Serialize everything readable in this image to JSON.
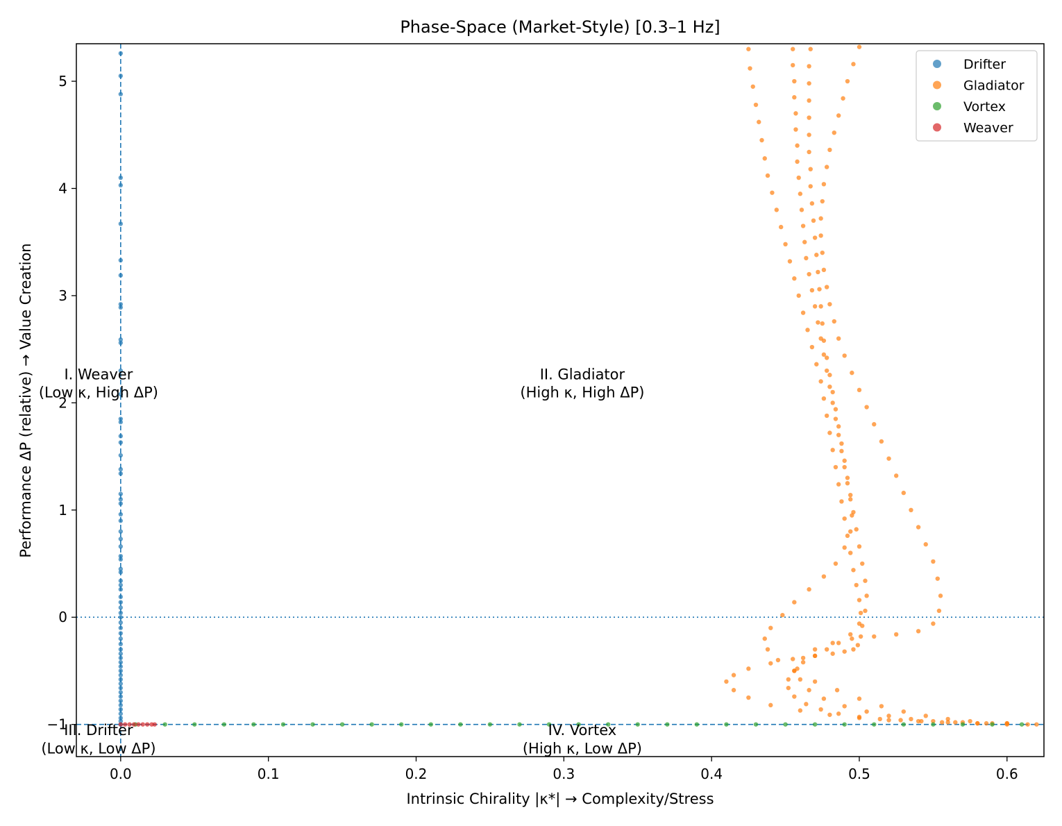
{
  "chart_data": {
    "type": "scatter",
    "title": "Phase-Space (Market-Style)  [0.3–1 Hz]",
    "xlabel": "Intrinsic Chirality |κ*|  → Complexity/Stress",
    "ylabel": "Performance ΔP (relative) → Value Creation",
    "xlim": [
      -0.03,
      0.625
    ],
    "ylim": [
      -1.3,
      5.35
    ],
    "x_ticks": [
      0.0,
      0.1,
      0.2,
      0.3,
      0.4,
      0.5,
      0.6
    ],
    "x_tick_labels": [
      "0.0",
      "0.1",
      "0.2",
      "0.3",
      "0.4",
      "0.5",
      "0.6"
    ],
    "y_ticks": [
      -1,
      0,
      1,
      2,
      3,
      4,
      5
    ],
    "y_tick_labels": [
      "−1",
      "0",
      "1",
      "2",
      "3",
      "4",
      "5"
    ],
    "grid": false,
    "legend_position": "top-right",
    "reference_lines": [
      {
        "orientation": "horizontal",
        "value": 0,
        "style": "dotted",
        "color": "#1f77b4"
      },
      {
        "orientation": "horizontal",
        "value": -1,
        "style": "dashed",
        "color": "#1f77b4"
      },
      {
        "orientation": "vertical",
        "value": 0,
        "style": "dashed",
        "color": "#1f77b4"
      }
    ],
    "quadrant_labels": [
      {
        "id": "weaver",
        "line1": "I. Weaver",
        "line2": "(Low κ, High ΔP)",
        "x": -0.015,
        "y": 2.2
      },
      {
        "id": "gladiator",
        "line1": "II. Gladiator",
        "line2": "(High κ, High ΔP)",
        "x": 0.3125,
        "y": 2.2
      },
      {
        "id": "drifter",
        "line1": "III. Drifter",
        "line2": "(Low κ, Low ΔP)",
        "x": -0.015,
        "y": -1.12
      },
      {
        "id": "vortex",
        "line1": "IV. Vortex",
        "line2": "(High κ, Low ΔP)",
        "x": 0.3125,
        "y": -1.12
      }
    ],
    "series": [
      {
        "name": "Drifter",
        "color": "#1f77b4",
        "x": [
          0,
          0,
          0,
          0,
          0,
          0,
          0,
          0,
          0,
          0,
          0,
          0,
          0,
          0,
          0,
          0,
          0,
          0,
          0,
          0,
          0,
          0,
          0,
          0,
          0,
          0,
          0,
          0,
          0,
          0,
          0,
          0,
          0,
          0,
          0,
          0,
          0,
          0,
          0,
          0,
          0,
          0,
          0,
          0,
          0,
          0,
          0,
          0,
          0,
          0,
          0,
          0,
          0,
          0,
          0,
          0,
          0,
          0,
          0,
          0,
          0,
          0,
          0,
          0,
          0
        ],
        "y": [
          5.26,
          5.05,
          4.88,
          4.1,
          4.03,
          3.67,
          3.33,
          3.19,
          2.92,
          2.89,
          2.59,
          2.56,
          2.3,
          2.08,
          1.85,
          1.82,
          1.69,
          1.63,
          1.51,
          1.38,
          1.34,
          1.15,
          1.1,
          1.06,
          0.96,
          0.9,
          0.8,
          0.73,
          0.66,
          0.57,
          0.54,
          0.45,
          0.42,
          0.34,
          0.3,
          0.26,
          0.19,
          0.14,
          0.09,
          0.04,
          0.0,
          -0.05,
          -0.1,
          -0.15,
          -0.2,
          -0.25,
          -0.3,
          -0.34,
          -0.38,
          -0.42,
          -0.46,
          -0.5,
          -0.54,
          -0.58,
          -0.62,
          -0.66,
          -0.7,
          -0.74,
          -0.78,
          -0.82,
          -0.86,
          -0.9,
          -0.94,
          -0.97,
          -1.0
        ]
      },
      {
        "name": "Gladiator",
        "color": "#ff7f0e",
        "x": [
          0.425,
          0.426,
          0.428,
          0.43,
          0.432,
          0.434,
          0.436,
          0.438,
          0.441,
          0.444,
          0.447,
          0.45,
          0.453,
          0.456,
          0.459,
          0.462,
          0.465,
          0.468,
          0.471,
          0.474,
          0.476,
          0.478,
          0.48,
          0.482,
          0.484,
          0.486,
          0.488,
          0.49,
          0.492,
          0.494,
          0.496,
          0.498,
          0.5,
          0.501,
          0.502,
          0.501,
          0.499,
          0.496,
          0.49,
          0.482,
          0.47,
          0.455,
          0.44,
          0.425,
          0.415,
          0.41,
          0.415,
          0.425,
          0.44,
          0.46,
          0.48,
          0.5,
          0.52,
          0.54,
          0.56,
          0.58,
          0.6,
          0.455,
          0.455,
          0.456,
          0.456,
          0.457,
          0.457,
          0.458,
          0.458,
          0.459,
          0.46,
          0.461,
          0.462,
          0.463,
          0.464,
          0.466,
          0.468,
          0.47,
          0.472,
          0.474,
          0.476,
          0.478,
          0.48,
          0.482,
          0.484,
          0.486,
          0.488,
          0.49,
          0.492,
          0.494,
          0.495,
          0.494,
          0.49,
          0.484,
          0.476,
          0.466,
          0.456,
          0.448,
          0.44,
          0.436,
          0.438,
          0.445,
          0.456,
          0.47,
          0.485,
          0.5,
          0.515,
          0.53,
          0.545,
          0.56,
          0.575,
          0.59,
          0.467,
          0.466,
          0.466,
          0.466,
          0.466,
          0.466,
          0.466,
          0.467,
          0.467,
          0.468,
          0.469,
          0.47,
          0.471,
          0.472,
          0.473,
          0.474,
          0.475,
          0.476,
          0.478,
          0.48,
          0.482,
          0.484,
          0.486,
          0.488,
          0.49,
          0.492,
          0.494,
          0.496,
          0.498,
          0.5,
          0.502,
          0.504,
          0.505,
          0.504,
          0.5,
          0.494,
          0.486,
          0.478,
          0.47,
          0.462,
          0.456,
          0.452,
          0.452,
          0.456,
          0.464,
          0.474,
          0.486,
          0.5,
          0.514,
          0.528,
          0.542,
          0.556,
          0.57,
          0.586,
          0.6,
          0.614,
          0.5,
          0.496,
          0.492,
          0.489,
          0.486,
          0.483,
          0.48,
          0.478,
          0.476,
          0.475,
          0.474,
          0.474,
          0.475,
          0.476,
          0.478,
          0.48,
          0.483,
          0.486,
          0.49,
          0.495,
          0.5,
          0.505,
          0.51,
          0.515,
          0.52,
          0.525,
          0.53,
          0.535,
          0.54,
          0.545,
          0.55,
          0.553,
          0.555,
          0.554,
          0.55,
          0.54,
          0.525,
          0.51,
          0.495,
          0.482,
          0.47,
          0.462,
          0.458,
          0.46,
          0.466,
          0.476,
          0.49,
          0.505,
          0.52,
          0.535,
          0.55,
          0.565,
          0.58,
          0.6,
          0.62
        ],
        "y": [
          5.3,
          5.12,
          4.95,
          4.78,
          4.62,
          4.45,
          4.28,
          4.12,
          3.96,
          3.8,
          3.64,
          3.48,
          3.32,
          3.16,
          3.0,
          2.84,
          2.68,
          2.52,
          2.36,
          2.2,
          2.04,
          1.88,
          1.72,
          1.56,
          1.4,
          1.24,
          1.08,
          0.92,
          0.76,
          0.6,
          0.44,
          0.3,
          0.16,
          0.04,
          -0.08,
          -0.18,
          -0.26,
          -0.3,
          -0.32,
          -0.34,
          -0.36,
          -0.39,
          -0.43,
          -0.48,
          -0.54,
          -0.6,
          -0.68,
          -0.75,
          -0.82,
          -0.87,
          -0.91,
          -0.94,
          -0.96,
          -0.97,
          -0.98,
          -0.99,
          -1.0,
          5.3,
          5.15,
          5.0,
          4.85,
          4.7,
          4.55,
          4.4,
          4.25,
          4.1,
          3.95,
          3.8,
          3.65,
          3.5,
          3.35,
          3.2,
          3.05,
          2.9,
          2.75,
          2.6,
          2.45,
          2.3,
          2.15,
          2.0,
          1.85,
          1.7,
          1.55,
          1.4,
          1.25,
          1.1,
          0.95,
          0.8,
          0.65,
          0.5,
          0.38,
          0.26,
          0.14,
          0.02,
          -0.1,
          -0.2,
          -0.3,
          -0.4,
          -0.5,
          -0.6,
          -0.68,
          -0.76,
          -0.83,
          -0.88,
          -0.92,
          -0.95,
          -0.97,
          -0.99,
          5.3,
          5.14,
          4.98,
          4.82,
          4.66,
          4.5,
          4.34,
          4.18,
          4.02,
          3.86,
          3.7,
          3.54,
          3.38,
          3.22,
          3.06,
          2.9,
          2.74,
          2.58,
          2.42,
          2.26,
          2.1,
          1.94,
          1.78,
          1.62,
          1.46,
          1.3,
          1.14,
          0.98,
          0.82,
          0.66,
          0.5,
          0.34,
          0.2,
          0.06,
          -0.06,
          -0.16,
          -0.24,
          -0.3,
          -0.36,
          -0.42,
          -0.5,
          -0.58,
          -0.66,
          -0.74,
          -0.81,
          -0.86,
          -0.9,
          -0.93,
          -0.95,
          -0.96,
          -0.97,
          -0.98,
          -0.98,
          -0.99,
          -0.99,
          -1.0,
          5.32,
          5.16,
          5.0,
          4.84,
          4.68,
          4.52,
          4.36,
          4.2,
          4.04,
          3.88,
          3.72,
          3.56,
          3.4,
          3.24,
          3.08,
          2.92,
          2.76,
          2.6,
          2.44,
          2.28,
          2.12,
          1.96,
          1.8,
          1.64,
          1.48,
          1.32,
          1.16,
          1.0,
          0.84,
          0.68,
          0.52,
          0.36,
          0.2,
          0.06,
          -0.06,
          -0.13,
          -0.16,
          -0.18,
          -0.2,
          -0.24,
          -0.3,
          -0.38,
          -0.48,
          -0.58,
          -0.68,
          -0.76,
          -0.83,
          -0.88,
          -0.92,
          -0.95,
          -0.97,
          -0.98,
          -0.99,
          -0.99,
          -1.0
        ]
      },
      {
        "name": "Vortex",
        "color": "#2ca02c",
        "x": [
          0.01,
          0.03,
          0.05,
          0.07,
          0.09,
          0.11,
          0.13,
          0.15,
          0.17,
          0.19,
          0.21,
          0.23,
          0.25,
          0.27,
          0.29,
          0.31,
          0.33,
          0.35,
          0.37,
          0.39,
          0.41,
          0.43,
          0.45,
          0.47,
          0.49,
          0.51,
          0.53,
          0.55,
          0.57,
          0.59,
          0.61
        ],
        "y": [
          -1,
          -1,
          -1,
          -1,
          -1,
          -1,
          -1,
          -1,
          -1,
          -1,
          -1,
          -1,
          -1,
          -1,
          -1,
          -1,
          -1,
          -1,
          -1,
          -1,
          -1,
          -1,
          -1,
          -1,
          -1,
          -1,
          -1,
          -1,
          -1,
          -1,
          -1
        ]
      },
      {
        "name": "Weaver",
        "color": "#d62728",
        "x": [
          0.0,
          0.003,
          0.006,
          0.009,
          0.012,
          0.015,
          0.018,
          0.021,
          0.023
        ],
        "y": [
          -1,
          -1,
          -1,
          -1,
          -1,
          -1,
          -1,
          -1,
          -1
        ]
      }
    ]
  }
}
